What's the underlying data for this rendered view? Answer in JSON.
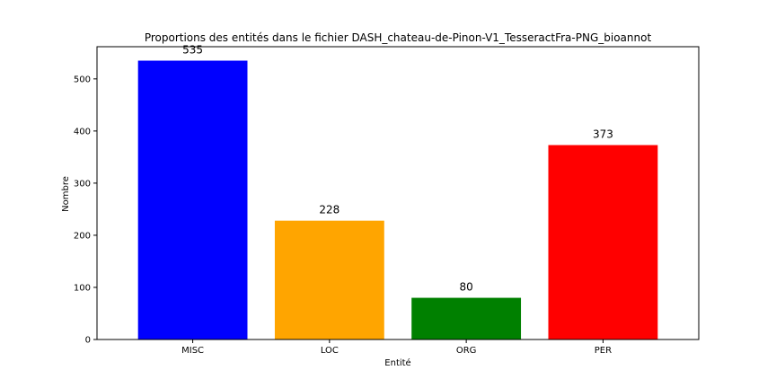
{
  "chart_data": {
    "type": "bar",
    "title": "Proportions des entités dans le fichier DASH_chateau-de-Pinon-V1_TesseractFra-PNG_bioannot",
    "xlabel": "Entité",
    "ylabel": "Nombre",
    "categories": [
      "MISC",
      "LOC",
      "ORG",
      "PER"
    ],
    "values": [
      535,
      228,
      80,
      373
    ],
    "value_labels": [
      "535",
      "228",
      "80",
      "373"
    ],
    "colors": [
      "#0000ff",
      "#ffa500",
      "#008000",
      "#ff0000"
    ],
    "ylim": [
      0,
      561.75
    ],
    "yticks": [
      0,
      100,
      200,
      300,
      400,
      500
    ],
    "ytick_labels": [
      "0",
      "100",
      "200",
      "300",
      "400",
      "500"
    ],
    "grid": false,
    "legend": false
  }
}
